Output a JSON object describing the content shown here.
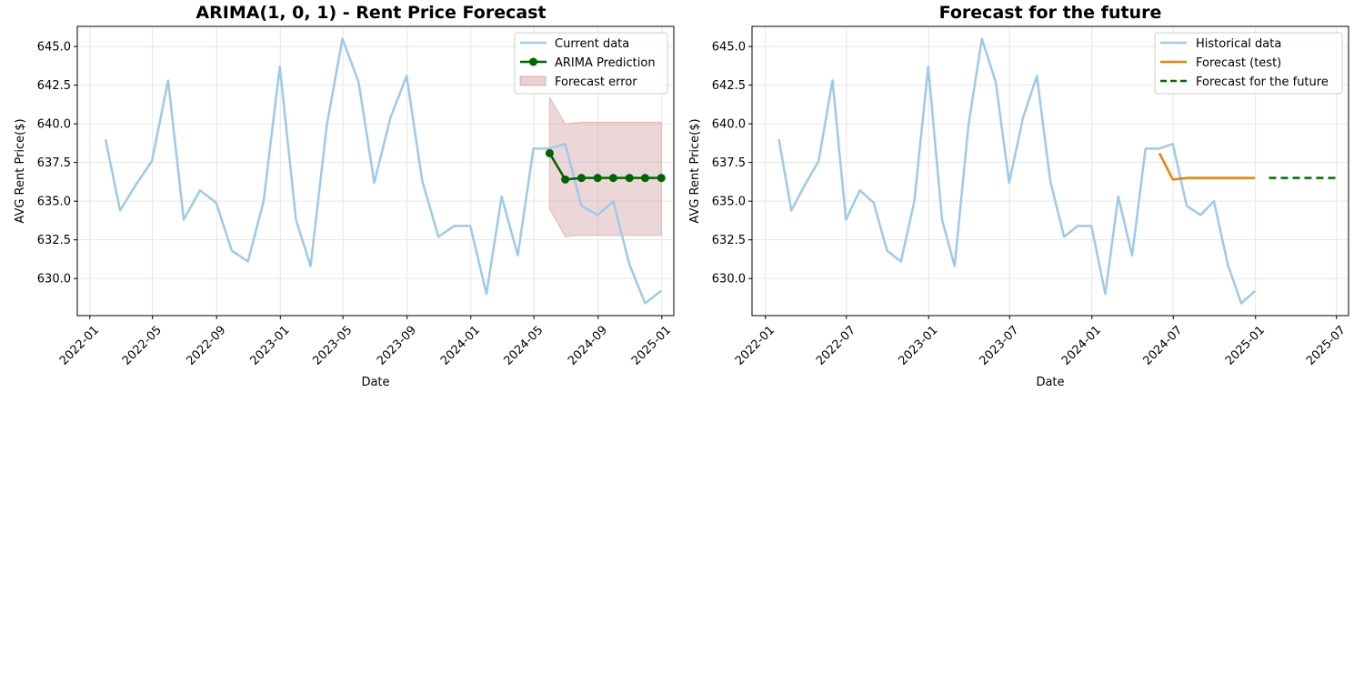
{
  "chart_data": [
    {
      "type": "line",
      "title": "ARIMA(1, 0, 1) - Rent Price Forecast",
      "xlabel": "Date",
      "ylabel": "AVG Rent Price($)",
      "x_ticks": [
        "2022-01",
        "2022-05",
        "2022-09",
        "2023-01",
        "2023-05",
        "2023-09",
        "2024-01",
        "2024-05",
        "2024-09",
        "2025-01"
      ],
      "y_ticks": [
        "630.0",
        "632.5",
        "635.0",
        "637.5",
        "640.0",
        "642.5",
        "645.0"
      ],
      "xlim": [
        "2021-12-08",
        "2025-01-24"
      ],
      "ylim": [
        627.6,
        646.3
      ],
      "grid": true,
      "legend_position": "top-right",
      "series": [
        {
          "name": "Current data",
          "color": "#9ecae9",
          "x": [
            "2022-01-31",
            "2022-02-28",
            "2022-03-31",
            "2022-04-30",
            "2022-05-31",
            "2022-06-30",
            "2022-07-31",
            "2022-08-31",
            "2022-09-30",
            "2022-10-31",
            "2022-11-30",
            "2022-12-31",
            "2023-01-31",
            "2023-02-28",
            "2023-03-31",
            "2023-04-30",
            "2023-05-31",
            "2023-06-30",
            "2023-07-31",
            "2023-08-31",
            "2023-09-30",
            "2023-10-31",
            "2023-11-30",
            "2023-12-31",
            "2024-01-31",
            "2024-02-29",
            "2024-03-31",
            "2024-04-30",
            "2024-05-31",
            "2024-06-30",
            "2024-07-31",
            "2024-08-31",
            "2024-09-30",
            "2024-10-31",
            "2024-11-30",
            "2024-12-31"
          ],
          "y": [
            639.0,
            634.4,
            636.1,
            637.6,
            642.8,
            633.8,
            635.7,
            634.9,
            631.8,
            631.1,
            635.0,
            643.7,
            633.8,
            630.8,
            639.9,
            645.5,
            642.7,
            636.2,
            640.4,
            643.1,
            636.3,
            632.7,
            633.4,
            633.4,
            629.0,
            635.3,
            631.5,
            638.4,
            638.4,
            638.7,
            634.7,
            634.1,
            635.0,
            630.9,
            628.4,
            629.2
          ]
        },
        {
          "name": "ARIMA Prediction",
          "color": "#006400",
          "x": [
            "2024-05-31",
            "2024-06-30",
            "2024-07-31",
            "2024-08-31",
            "2024-09-30",
            "2024-10-31",
            "2024-11-30",
            "2024-12-31"
          ],
          "y": [
            638.1,
            636.4,
            636.5,
            636.5,
            636.5,
            636.5,
            636.5,
            636.5
          ]
        }
      ],
      "band": {
        "name": "Forecast error",
        "color": "#c98a8f",
        "x": [
          "2024-05-31",
          "2024-06-30",
          "2024-07-31",
          "2024-08-31",
          "2024-09-30",
          "2024-10-31",
          "2024-11-30",
          "2024-12-31"
        ],
        "lower": [
          634.5,
          632.7,
          632.8,
          632.8,
          632.8,
          632.8,
          632.8,
          632.8
        ],
        "upper": [
          641.7,
          640.0,
          640.1,
          640.1,
          640.1,
          640.1,
          640.1,
          640.1
        ]
      }
    },
    {
      "type": "line",
      "title": "Forecast for the future",
      "xlabel": "Date",
      "ylabel": "AVG Rent Price($)",
      "x_ticks": [
        "2022-01",
        "2022-07",
        "2023-01",
        "2023-07",
        "2024-01",
        "2024-07",
        "2025-01",
        "2025-07"
      ],
      "y_ticks": [
        "630.0",
        "632.5",
        "635.0",
        "637.5",
        "640.0",
        "642.5",
        "645.0"
      ],
      "xlim": [
        "2021-12-02",
        "2025-07-28"
      ],
      "ylim": [
        627.6,
        646.3
      ],
      "grid": true,
      "legend_position": "top-right",
      "series": [
        {
          "name": "Historical data",
          "color": "#9ecae9",
          "style": "solid",
          "x": [
            "2022-01-31",
            "2022-02-28",
            "2022-03-31",
            "2022-04-30",
            "2022-05-31",
            "2022-06-30",
            "2022-07-31",
            "2022-08-31",
            "2022-09-30",
            "2022-10-31",
            "2022-11-30",
            "2022-12-31",
            "2023-01-31",
            "2023-02-28",
            "2023-03-31",
            "2023-04-30",
            "2023-05-31",
            "2023-06-30",
            "2023-07-31",
            "2023-08-31",
            "2023-09-30",
            "2023-10-31",
            "2023-11-30",
            "2023-12-31",
            "2024-01-31",
            "2024-02-29",
            "2024-03-31",
            "2024-04-30",
            "2024-05-31",
            "2024-06-30",
            "2024-07-31",
            "2024-08-31",
            "2024-09-30",
            "2024-10-31",
            "2024-11-30",
            "2024-12-31"
          ],
          "y": [
            639.0,
            634.4,
            636.1,
            637.6,
            642.8,
            633.8,
            635.7,
            634.9,
            631.8,
            631.1,
            635.0,
            643.7,
            633.8,
            630.8,
            639.9,
            645.5,
            642.7,
            636.2,
            640.4,
            643.1,
            636.3,
            632.7,
            633.4,
            633.4,
            629.0,
            635.3,
            631.5,
            638.4,
            638.4,
            638.7,
            634.7,
            634.1,
            635.0,
            630.9,
            628.4,
            629.2
          ]
        },
        {
          "name": "Forecast (test)",
          "color": "#e8820c",
          "style": "solid",
          "x": [
            "2024-05-31",
            "2024-06-30",
            "2024-07-31",
            "2024-08-31",
            "2024-09-30",
            "2024-10-31",
            "2024-11-30",
            "2024-12-31"
          ],
          "y": [
            638.1,
            636.4,
            636.5,
            636.5,
            636.5,
            636.5,
            636.5,
            636.5
          ]
        },
        {
          "name": "Forecast for the future",
          "color": "#007000",
          "style": "dashed",
          "x": [
            "2025-01-31",
            "2025-02-28",
            "2025-03-31",
            "2025-04-30",
            "2025-05-31",
            "2025-06-30"
          ],
          "y": [
            636.5,
            636.5,
            636.5,
            636.5,
            636.5,
            636.5
          ]
        }
      ]
    }
  ]
}
